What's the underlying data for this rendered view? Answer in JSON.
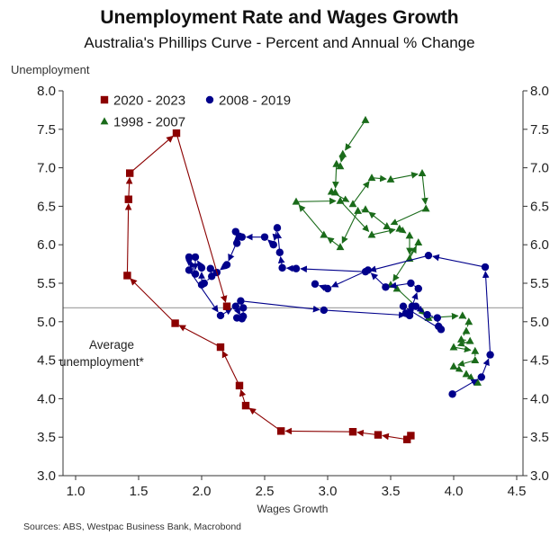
{
  "chart_data": {
    "type": "scatter",
    "title": "Unemployment Rate and Wages Growth",
    "subtitle": "Australia's Phillips Curve - Percent and Annual % Change",
    "xlabel": "Wages Growth",
    "ylabel": "Unemployment",
    "source": "Sources: ABS, Westpac Business Bank, Macrobond",
    "xlim": [
      0.9,
      4.55
    ],
    "ylim": [
      3.0,
      8.0
    ],
    "xticks": [
      "1.0",
      "1.5",
      "2.0",
      "2.5",
      "3.0",
      "3.5",
      "4.0",
      "4.5"
    ],
    "yticks": [
      "3.0",
      "3.5",
      "4.0",
      "4.5",
      "5.0",
      "5.5",
      "6.0",
      "6.5",
      "7.0",
      "7.5",
      "8.0"
    ],
    "grid": false,
    "legend_position": "top-left",
    "reference_line": {
      "y": 5.18,
      "color": "#a6a6a6"
    },
    "annotation": [
      "Average",
      "unemployment*"
    ],
    "series": [
      {
        "name": "2020 - 2023",
        "color": "#8b0000",
        "marker": "square",
        "points": [
          [
            3.66,
            3.52
          ],
          [
            3.63,
            3.47
          ],
          [
            3.4,
            3.53
          ],
          [
            3.2,
            3.57
          ],
          [
            2.63,
            3.58
          ],
          [
            2.35,
            3.91
          ],
          [
            2.3,
            4.17
          ],
          [
            2.15,
            4.67
          ],
          [
            1.79,
            4.98
          ],
          [
            1.41,
            5.6
          ],
          [
            1.42,
            6.59
          ],
          [
            1.43,
            6.93
          ],
          [
            1.8,
            7.45
          ],
          [
            2.2,
            5.2
          ]
        ]
      },
      {
        "name": "2008 - 2019",
        "color": "#00008b",
        "marker": "circle",
        "points": [
          [
            3.99,
            4.06
          ],
          [
            4.22,
            4.28
          ],
          [
            4.29,
            4.57
          ],
          [
            4.25,
            5.71
          ],
          [
            3.8,
            5.86
          ],
          [
            3.3,
            5.65
          ],
          [
            2.75,
            5.69
          ],
          [
            2.64,
            5.7
          ],
          [
            2.62,
            5.9
          ],
          [
            2.6,
            6.22
          ],
          [
            2.57,
            6.0
          ],
          [
            2.5,
            6.1
          ],
          [
            2.32,
            6.1
          ],
          [
            2.28,
            6.02
          ],
          [
            2.27,
            6.17
          ],
          [
            2.3,
            6.11
          ],
          [
            2.2,
            5.74
          ],
          [
            2.12,
            5.64
          ],
          [
            2.07,
            5.69
          ],
          [
            2.08,
            5.59
          ],
          [
            2.02,
            5.5
          ],
          [
            2.0,
            5.48
          ],
          [
            2.0,
            5.7
          ],
          [
            1.95,
            5.84
          ],
          [
            1.95,
            5.62
          ],
          [
            1.9,
            5.84
          ],
          [
            1.9,
            5.67
          ],
          [
            2.15,
            5.08
          ],
          [
            2.27,
            5.2
          ],
          [
            2.32,
            5.04
          ],
          [
            2.28,
            5.05
          ],
          [
            2.33,
            5.07
          ],
          [
            2.33,
            5.18
          ],
          [
            2.31,
            5.27
          ],
          [
            2.97,
            5.15
          ],
          [
            3.65,
            5.08
          ],
          [
            3.7,
            5.2
          ],
          [
            3.79,
            5.09
          ],
          [
            3.87,
            5.05
          ],
          [
            3.88,
            4.94
          ],
          [
            3.9,
            4.9
          ],
          [
            3.6,
            5.2
          ],
          [
            3.62,
            5.11
          ],
          [
            3.67,
            5.2
          ],
          [
            3.72,
            5.43
          ],
          [
            3.66,
            5.5
          ],
          [
            3.46,
            5.45
          ],
          [
            3.32,
            5.67
          ],
          [
            3.0,
            5.43
          ],
          [
            2.9,
            5.49
          ]
        ]
      },
      {
        "name": "1998 - 2007",
        "color": "#1a6b1a",
        "marker": "triangle",
        "points": [
          [
            3.3,
            7.62
          ],
          [
            3.12,
            7.18
          ],
          [
            3.1,
            7.02
          ],
          [
            3.07,
            7.05
          ],
          [
            3.06,
            6.68
          ],
          [
            3.03,
            6.69
          ],
          [
            3.2,
            6.53
          ],
          [
            3.35,
            6.87
          ],
          [
            3.5,
            6.85
          ],
          [
            3.75,
            6.93
          ],
          [
            3.78,
            6.47
          ],
          [
            3.47,
            6.24
          ],
          [
            3.3,
            6.46
          ],
          [
            3.24,
            6.44
          ],
          [
            3.1,
            5.97
          ],
          [
            2.97,
            6.13
          ],
          [
            2.75,
            6.56
          ],
          [
            3.1,
            6.57
          ],
          [
            3.35,
            6.13
          ],
          [
            3.57,
            6.21
          ],
          [
            3.65,
            6.12
          ],
          [
            3.65,
            5.82
          ],
          [
            3.72,
            6.03
          ],
          [
            3.5,
            5.48
          ],
          [
            3.55,
            5.43
          ],
          [
            3.8,
            5.05
          ],
          [
            4.07,
            5.08
          ],
          [
            4.12,
            5.0
          ],
          [
            4.1,
            4.88
          ],
          [
            4.06,
            4.77
          ],
          [
            4.13,
            4.75
          ],
          [
            4.0,
            4.67
          ],
          [
            4.17,
            4.62
          ],
          [
            4.17,
            4.5
          ],
          [
            4.0,
            4.42
          ],
          [
            4.1,
            4.32
          ],
          [
            4.19,
            4.21
          ]
        ]
      }
    ]
  }
}
